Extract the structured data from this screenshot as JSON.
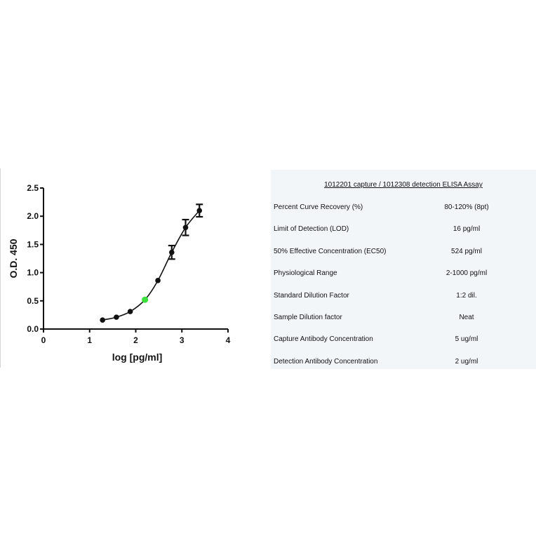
{
  "chart_data": {
    "type": "scatter",
    "title": "",
    "xlabel": "log [pg/ml]",
    "ylabel": "O.D. 450",
    "xlim": [
      0,
      4
    ],
    "ylim": [
      0,
      2.5
    ],
    "x_ticks": [
      "0",
      "1",
      "2",
      "3",
      "4"
    ],
    "y_ticks": [
      "0.0",
      "0.5",
      "1.0",
      "1.5",
      "2.0",
      "2.5"
    ],
    "grid": false,
    "legend": "none",
    "fit": "4-parameter logistic curve",
    "points": [
      {
        "x": 1.28,
        "y": 0.16,
        "err": 0
      },
      {
        "x": 1.58,
        "y": 0.21,
        "err": 0
      },
      {
        "x": 1.88,
        "y": 0.31,
        "err": 0
      },
      {
        "x": 2.2,
        "y": 0.52,
        "err": 0,
        "highlight": true
      },
      {
        "x": 2.48,
        "y": 0.86,
        "err": 0
      },
      {
        "x": 2.78,
        "y": 1.36,
        "err": 0.12
      },
      {
        "x": 3.08,
        "y": 1.8,
        "err": 0.14
      },
      {
        "x": 3.38,
        "y": 2.1,
        "err": 0.11
      }
    ],
    "colors": {
      "points": "#111111",
      "highlight": "#3ce03c",
      "curve": "#111111"
    }
  },
  "table": {
    "title": "1012201 capture / 1012308 detection ELISA Assay",
    "rows": [
      {
        "label": "Percent Curve Recovery (%)",
        "value": "80-120% (8pt)"
      },
      {
        "label": "Limit of Detection (LOD)",
        "value": "16 pg/ml"
      },
      {
        "label": "50% Effective Concentration (EC50)",
        "value": "524 pg/ml"
      },
      {
        "label": "Physiological Range",
        "value": "2-1000 pg/ml"
      },
      {
        "label": "Standard Dilution Factor",
        "value": "1:2 dil."
      },
      {
        "label": "Sample Dilution factor",
        "value": "Neat"
      },
      {
        "label": "Capture Antibody Concentration",
        "value": "5 ug/ml"
      },
      {
        "label": "Detection Antibody Concentration",
        "value": "2 ug/ml"
      }
    ]
  }
}
